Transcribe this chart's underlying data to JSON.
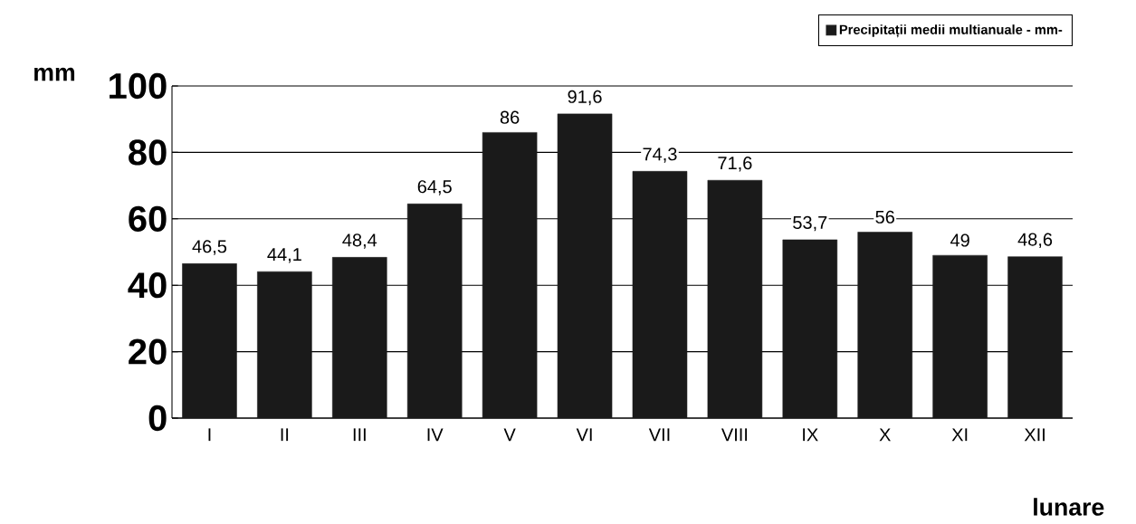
{
  "chart_data": {
    "type": "bar",
    "categories": [
      "I",
      "II",
      "III",
      "IV",
      "V",
      "VI",
      "VII",
      "VIII",
      "IX",
      "X",
      "XI",
      "XII"
    ],
    "series": [
      {
        "name": "Precipitații medii multianuale  - mm-",
        "color": "#1a1a1a",
        "values": [
          46.5,
          44.1,
          48.4,
          64.5,
          86,
          91.6,
          74.3,
          71.6,
          53.7,
          56,
          49,
          48.6
        ]
      }
    ],
    "value_labels": [
      "46,5",
      "44,1",
      "48,4",
      "64,5",
      "86",
      "91,6",
      "74,3",
      "71,6",
      "53,7",
      "56",
      "49",
      "48,6"
    ],
    "ylabel": "mm",
    "xlabel": "lunare",
    "ylim": [
      0,
      100
    ],
    "yticks": [
      0,
      20,
      40,
      60,
      80,
      100
    ],
    "grid": "y",
    "legend": "top right"
  }
}
